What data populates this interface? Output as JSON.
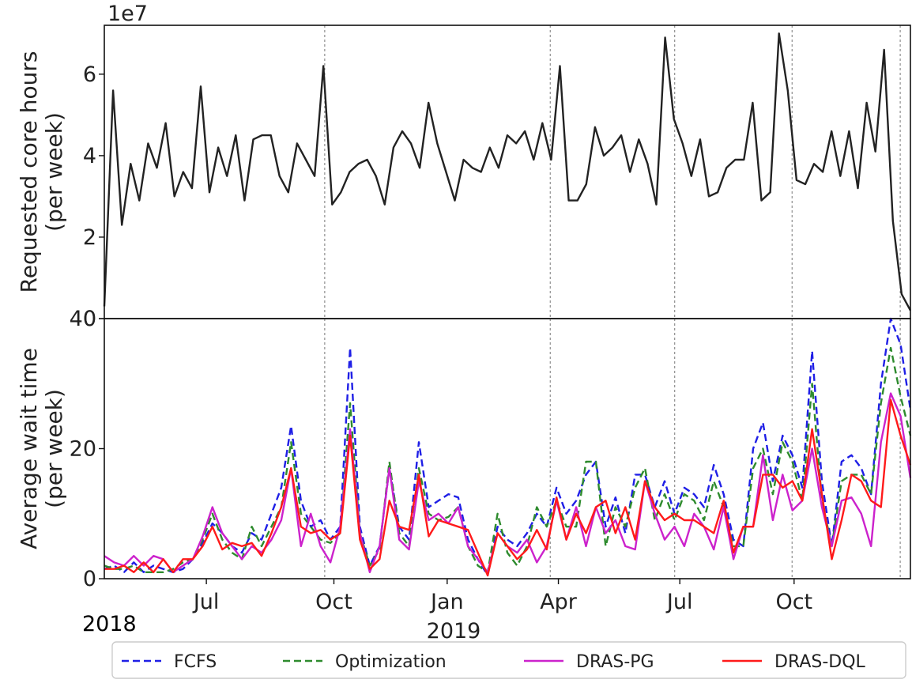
{
  "chart_data": [
    {
      "type": "line",
      "ylabel": [
        "Requested core hours",
        "(per week)"
      ],
      "offset_text": "1e7",
      "ylim": [
        0,
        7.2
      ],
      "yticks": [
        {
          "value": 0,
          "label": "0"
        },
        {
          "value": 2,
          "label": "2"
        },
        {
          "value": 4,
          "label": "4"
        },
        {
          "value": 6,
          "label": "6"
        }
      ],
      "xlim": [
        0,
        79
      ],
      "vlines": [
        21.6,
        43.7,
        55.9,
        67.4,
        78.0
      ],
      "series": [
        {
          "name": "Requested core hours",
          "color": "#222222",
          "dash": "",
          "values": [
            0.3,
            5.6,
            2.3,
            3.8,
            2.9,
            4.3,
            3.7,
            4.8,
            3.0,
            3.6,
            3.2,
            5.7,
            3.1,
            4.2,
            3.5,
            4.5,
            2.9,
            4.4,
            4.5,
            4.5,
            3.5,
            3.1,
            4.3,
            3.9,
            3.5,
            6.2,
            2.8,
            3.1,
            3.6,
            3.8,
            3.9,
            3.5,
            2.8,
            4.2,
            4.6,
            4.3,
            3.7,
            5.3,
            4.3,
            3.6,
            2.9,
            3.9,
            3.7,
            3.6,
            4.2,
            3.7,
            4.5,
            4.3,
            4.6,
            3.9,
            4.8,
            3.9,
            6.2,
            2.9,
            2.9,
            3.3,
            4.7,
            4.0,
            4.2,
            4.5,
            3.6,
            4.4,
            3.8,
            2.8,
            6.9,
            4.9,
            4.3,
            3.5,
            4.4,
            3.0,
            3.1,
            3.7,
            3.9,
            3.9,
            5.3,
            2.9,
            3.1,
            7.0,
            5.6,
            3.4,
            3.3,
            3.8,
            3.6,
            4.6,
            3.5,
            4.6,
            3.2,
            5.3,
            4.1,
            6.6,
            2.4,
            0.6,
            0.2
          ]
        }
      ]
    },
    {
      "type": "line",
      "ylabel": [
        "Average wait time",
        "(per week)"
      ],
      "ylim": [
        0,
        40
      ],
      "yticks": [
        {
          "value": 0,
          "label": "0"
        },
        {
          "value": 20,
          "label": "20"
        },
        {
          "value": 40,
          "label": "40"
        }
      ],
      "xlim": [
        0,
        79
      ],
      "xticks": [
        {
          "value": 10.0,
          "label": "Jul"
        },
        {
          "value": 22.5,
          "label": "Oct"
        },
        {
          "value": 33.6,
          "label": "Jan"
        },
        {
          "value": 44.5,
          "label": "Apr"
        },
        {
          "value": 56.4,
          "label": "Jul"
        },
        {
          "value": 67.6,
          "label": "Oct"
        }
      ],
      "year_labels": [
        "2018",
        "2019"
      ],
      "vlines": [
        21.6,
        43.7,
        55.9,
        67.4,
        78.0
      ],
      "series": [
        {
          "name": "FCFS",
          "color": "#1f1fe6",
          "dash": "9,5",
          "values": [
            1.5,
            2.0,
            1.0,
            2.5,
            1.0,
            2.0,
            1.5,
            1.0,
            1.5,
            3.0,
            5.5,
            8.5,
            7.0,
            5.0,
            4.0,
            7.0,
            6.0,
            10.0,
            14.0,
            23.5,
            12.0,
            8.0,
            9.0,
            6.0,
            8.0,
            35.5,
            8.0,
            2.0,
            5.0,
            17.0,
            8.0,
            6.0,
            21.0,
            11.0,
            12.0,
            13.0,
            12.5,
            6.0,
            3.0,
            0.5,
            8.0,
            6.0,
            5.0,
            7.0,
            10.0,
            8.0,
            14.0,
            10.0,
            12.0,
            16.0,
            18.0,
            8.0,
            12.5,
            7.0,
            16.0,
            16.0,
            11.0,
            15.0,
            10.0,
            14.0,
            13.0,
            11.0,
            17.5,
            13.0,
            6.0,
            5.0,
            20.0,
            24.0,
            15.0,
            22.0,
            19.0,
            14.0,
            35.0,
            15.0,
            5.0,
            18.0,
            19.0,
            17.0,
            13.0,
            30.0,
            40.0,
            36.0,
            26.0
          ]
        },
        {
          "name": "Optimization",
          "color": "#2e8b2e",
          "dash": "9,5",
          "values": [
            2.0,
            1.5,
            1.5,
            2.0,
            1.0,
            1.0,
            1.0,
            1.5,
            2.5,
            3.0,
            6.0,
            10.0,
            6.0,
            4.0,
            3.0,
            8.0,
            5.0,
            8.0,
            11.0,
            21.0,
            10.0,
            8.0,
            6.0,
            5.5,
            7.0,
            27.0,
            7.0,
            2.0,
            4.5,
            18.0,
            7.0,
            5.0,
            17.0,
            10.0,
            9.0,
            9.5,
            11.0,
            5.0,
            2.0,
            1.0,
            10.0,
            4.0,
            2.0,
            5.0,
            11.0,
            8.0,
            12.0,
            8.0,
            8.0,
            18.0,
            18.0,
            5.0,
            11.0,
            8.0,
            14.0,
            17.0,
            9.0,
            13.0,
            9.0,
            13.0,
            12.0,
            9.0,
            15.0,
            11.0,
            5.0,
            5.0,
            17.0,
            20.0,
            13.0,
            21.0,
            18.0,
            12.0,
            30.0,
            12.0,
            5.0,
            15.0,
            16.0,
            16.0,
            13.0,
            27.0,
            35.5,
            28.0,
            22.0
          ]
        },
        {
          "name": "DRAS-PG",
          "color": "#cc22cc",
          "dash": "",
          "values": [
            3.5,
            2.5,
            2.0,
            3.5,
            2.0,
            3.5,
            3.0,
            1.0,
            2.0,
            3.0,
            6.5,
            11.0,
            7.0,
            5.0,
            3.0,
            5.0,
            4.0,
            6.0,
            9.0,
            17.0,
            5.0,
            10.0,
            5.0,
            2.5,
            8.0,
            23.0,
            7.0,
            1.0,
            5.0,
            17.0,
            6.0,
            4.5,
            15.0,
            9.0,
            10.0,
            8.5,
            11.0,
            5.0,
            3.0,
            1.0,
            7.0,
            5.0,
            4.0,
            6.0,
            2.5,
            5.0,
            12.0,
            6.0,
            11.0,
            5.0,
            11.0,
            7.0,
            9.0,
            5.0,
            4.5,
            15.0,
            10.0,
            6.0,
            8.0,
            5.0,
            10.0,
            8.0,
            4.5,
            11.0,
            3.0,
            8.0,
            8.0,
            19.0,
            9.0,
            16.0,
            10.5,
            12.0,
            20.0,
            11.0,
            5.0,
            12.0,
            12.5,
            10.0,
            5.0,
            21.0,
            28.5,
            25.0,
            15.5
          ]
        },
        {
          "name": "DRAS-DQL",
          "color": "#ff1a1a",
          "dash": "",
          "values": [
            1.5,
            1.5,
            2.0,
            1.0,
            2.5,
            1.0,
            3.0,
            1.0,
            3.0,
            3.0,
            5.0,
            8.0,
            4.5,
            5.5,
            5.0,
            5.5,
            3.5,
            7.0,
            11.0,
            17.0,
            8.0,
            7.0,
            7.5,
            6.0,
            7.0,
            22.0,
            6.0,
            1.5,
            3.0,
            12.0,
            8.0,
            7.5,
            16.0,
            6.5,
            9.0,
            8.5,
            8.0,
            7.5,
            4.0,
            0.5,
            7.0,
            5.0,
            3.0,
            4.5,
            7.5,
            4.5,
            12.5,
            6.0,
            10.0,
            7.0,
            11.0,
            12.0,
            7.0,
            11.0,
            6.0,
            15.0,
            11.0,
            9.0,
            10.0,
            9.0,
            9.0,
            8.0,
            7.0,
            12.0,
            4.0,
            8.0,
            8.0,
            16.0,
            16.0,
            14.0,
            15.0,
            12.0,
            23.0,
            13.0,
            3.0,
            9.0,
            16.0,
            15.0,
            12.0,
            11.0,
            27.5,
            22.0,
            17.5
          ]
        }
      ]
    }
  ],
  "legend": {
    "items": [
      {
        "label": "FCFS",
        "color": "#1f1fe6",
        "dash": "9,5"
      },
      {
        "label": "Optimization",
        "color": "#2e8b2e",
        "dash": "9,5"
      },
      {
        "label": "DRAS-PG",
        "color": "#cc22cc",
        "dash": ""
      },
      {
        "label": "DRAS-DQL",
        "color": "#ff1a1a",
        "dash": ""
      }
    ]
  }
}
